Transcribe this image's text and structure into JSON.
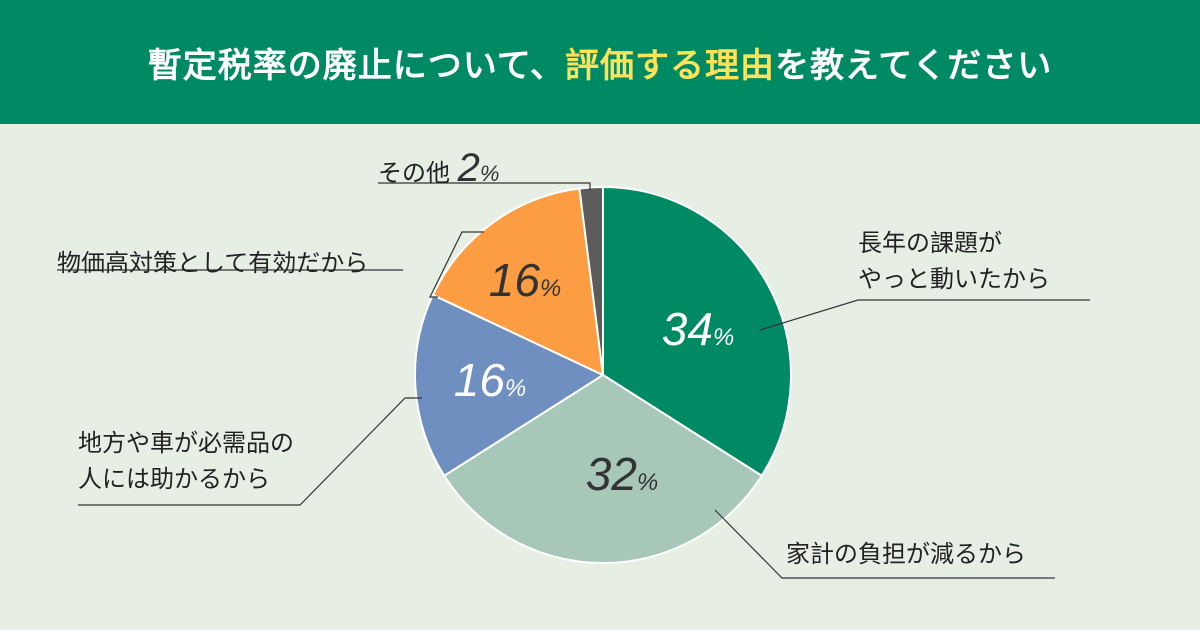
{
  "title": {
    "part1": "暫定税率の廃止について、",
    "part2": "評価する理由",
    "part3": "を教えてください"
  },
  "colors": {
    "header_bg": "#008a63",
    "highlight": "#ffe257",
    "background": "#e7efe5"
  },
  "chart_data": {
    "type": "pie",
    "unit": "%",
    "slices": [
      {
        "label_lines": [
          "長年の課題が",
          "やっと動いたから"
        ],
        "value": 34,
        "color": "#008a63"
      },
      {
        "label_lines": [
          "家計の負担が減るから"
        ],
        "value": 32,
        "color": "#a7c7b8"
      },
      {
        "label_lines": [
          "地方や車が必需品の",
          "人には助かるから"
        ],
        "value": 16,
        "color": "#6e8fc0"
      },
      {
        "label_lines": [
          "物価高対策として有効だから"
        ],
        "value": 16,
        "color": "#fd9d43"
      },
      {
        "label_lines": [
          "その他"
        ],
        "value": 2,
        "color": "#5c5c5c"
      }
    ]
  }
}
